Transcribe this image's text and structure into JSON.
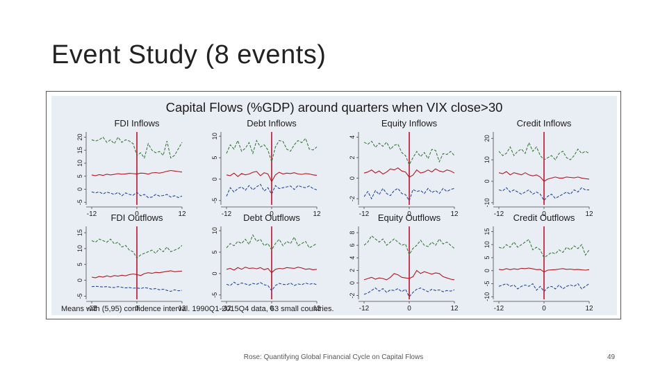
{
  "slide": {
    "title": "Event Study (8 events)",
    "footer": "Rose: Quantifying Global Financial Cycle on Capital Flows",
    "page_number": "49"
  },
  "colors": {
    "background_panel": "#e9eef4",
    "event_line": "#c0102a",
    "upper_band": "#3b7a3b",
    "mean_line": "#b3151e",
    "lower_band": "#24489a",
    "text": "#1a1a1a"
  },
  "chart_data": {
    "type": "line",
    "title": "Capital Flows (%GDP) around quarters when VIX close>30",
    "note": "Means with (5,95) confidence interval. 1990Q1-2015Q4 data, 63 small countries.",
    "x": [
      -12,
      -11,
      -10,
      -9,
      -8,
      -7,
      -6,
      -5,
      -4,
      -3,
      -2,
      -1,
      0,
      1,
      2,
      3,
      4,
      5,
      6,
      7,
      8,
      9,
      10,
      11,
      12
    ],
    "xticks": [
      "-12",
      "0",
      "12"
    ],
    "event_x": 0,
    "panels": [
      {
        "title": "FDI Inflows",
        "ylim": [
          -6,
          22
        ],
        "yticks": [
          "-5",
          "0",
          "5",
          "10",
          "15",
          "20"
        ],
        "ytick_values": [
          -5,
          0,
          5,
          10,
          15,
          20
        ],
        "upper": [
          19,
          18.5,
          19,
          20,
          18,
          19,
          17.5,
          20,
          18,
          19,
          18.5,
          17.5,
          13,
          14,
          12,
          17.5,
          15,
          14,
          14.5,
          13,
          18.5,
          12,
          13,
          15.5,
          18
        ],
        "mean": [
          5.5,
          5.2,
          5.6,
          5.3,
          5.8,
          5.5,
          5.7,
          6,
          5.8,
          5.9,
          6.1,
          6,
          5.9,
          6.2,
          6.1,
          5.8,
          6.3,
          6.4,
          6.2,
          6.5,
          6.9,
          7.2,
          7,
          6.8,
          6.6
        ],
        "lower": [
          -1,
          -1.4,
          -1,
          -1.8,
          -1.1,
          -1.5,
          -2,
          -1.2,
          -2.5,
          -1.4,
          -2,
          -2.3,
          -1.2,
          -2.5,
          -2,
          -3.2,
          -3,
          -2,
          -2.6,
          -2.4,
          -2,
          -3,
          -2.5,
          -3.2,
          -2.6
        ]
      },
      {
        "title": "Debt Inflows",
        "ylim": [
          -6,
          11
        ],
        "yticks": [
          "-5",
          "0",
          "5",
          "10"
        ],
        "ytick_values": [
          -5,
          0,
          5,
          10
        ],
        "upper": [
          6,
          8,
          7,
          9,
          6.5,
          7.2,
          8.5,
          6,
          9,
          7.5,
          8,
          6.8,
          4,
          7.5,
          9,
          8.8,
          7,
          6.5,
          8,
          9,
          8.5,
          9.5,
          7,
          6.8,
          7.5
        ],
        "mean": [
          1,
          0.8,
          1.4,
          0.6,
          1.3,
          1,
          1.2,
          1.6,
          1.8,
          0.8,
          1.5,
          1.2,
          -0.6,
          1,
          1.6,
          1.2,
          1.4,
          1.3,
          1.5,
          1.2,
          1.1,
          1.3,
          1.2,
          1,
          0.9
        ],
        "lower": [
          -4,
          -2,
          -3,
          -2.2,
          -1.8,
          -2.6,
          -1.5,
          -2.5,
          -1.8,
          -1.2,
          -2.8,
          -2,
          -3.5,
          -1.5,
          -2.2,
          -2,
          -1.8,
          -1.6,
          -2.4,
          -1.5,
          -1.8,
          -2,
          -1.6,
          -2.2,
          -2.5
        ]
      },
      {
        "title": "Equity Inflows",
        "ylim": [
          -2.6,
          4.5
        ],
        "yticks": [
          "-2",
          "0",
          "2",
          "4"
        ],
        "ytick_values": [
          -2,
          0,
          2,
          4
        ],
        "upper": [
          3.5,
          3.3,
          3.6,
          3,
          3.4,
          3.1,
          3.5,
          2.8,
          3.2,
          3.3,
          2.5,
          2.2,
          1.3,
          2,
          2.6,
          2.1,
          2.5,
          1.9,
          2.8,
          2.7,
          1.6,
          2.4,
          2.3,
          2.6,
          2.2
        ],
        "mean": [
          0.5,
          0.6,
          0.8,
          0.5,
          0.7,
          0.4,
          0.6,
          0.9,
          0.8,
          1,
          0.7,
          0.6,
          0.1,
          0.3,
          0.8,
          0.5,
          0.6,
          0.8,
          0.6,
          0.9,
          0.7,
          0.6,
          0.8,
          0.7,
          0.5
        ],
        "lower": [
          -1.8,
          -1.3,
          -2,
          -1.2,
          -1.6,
          -1,
          -1.5,
          -1.7,
          -1.2,
          -1,
          -1.5,
          -1.6,
          -2.2,
          -1.1,
          -1.3,
          -1.2,
          -1.5,
          -1,
          -1.4,
          -1.2,
          -1.5,
          -1,
          -1.3,
          -1.1,
          -1
        ]
      },
      {
        "title": "Credit Inflows",
        "ylim": [
          -11,
          23
        ],
        "yticks": [
          "-10",
          "0",
          "10",
          "20"
        ],
        "ytick_values": [
          -10,
          0,
          10,
          20
        ],
        "upper": [
          14,
          12,
          13,
          16,
          12,
          14,
          15,
          13,
          18,
          14,
          16,
          12,
          10,
          11,
          12,
          10,
          13,
          14,
          11,
          10,
          12,
          15,
          13,
          14,
          13
        ],
        "mean": [
          4,
          3.5,
          4.5,
          3,
          4,
          3.5,
          3,
          4,
          3,
          2.5,
          3,
          2,
          0,
          1,
          1.5,
          2,
          1.5,
          1.5,
          2,
          1.8,
          1.6,
          2,
          1.5,
          1.2,
          1
        ],
        "lower": [
          -4,
          -4.5,
          -3,
          -5,
          -4,
          -5,
          -6,
          -5,
          -4,
          -6,
          -5,
          -6,
          -9,
          -7,
          -6,
          -8,
          -7,
          -6,
          -5,
          -6,
          -4,
          -5,
          -3,
          -4,
          -4
        ]
      },
      {
        "title": "FDI Outflows",
        "ylim": [
          -6,
          17
        ],
        "yticks": [
          "-5",
          "0",
          "5",
          "10",
          "15"
        ],
        "ytick_values": [
          -5,
          0,
          5,
          10,
          15
        ],
        "upper": [
          12.5,
          12,
          13,
          12.5,
          12,
          13,
          11.5,
          12,
          10.5,
          11,
          9.5,
          9,
          7,
          8,
          8.5,
          9,
          9.5,
          8.5,
          10,
          9,
          10.5,
          9,
          9.5,
          10,
          11
        ],
        "mean": [
          1,
          0.8,
          1.2,
          1,
          1.4,
          1.1,
          1.5,
          1.3,
          1.6,
          1.4,
          1.8,
          2,
          1.8,
          1.5,
          2.1,
          2.4,
          2.2,
          2.5,
          2.4,
          2.6,
          2.8,
          3,
          2.7,
          2.8,
          2.9
        ],
        "lower": [
          -2,
          -1.9,
          -2,
          -2.1,
          -2,
          -2.2,
          -2.3,
          -2,
          -2.2,
          -2.4,
          -2.3,
          -2.5,
          -2.4,
          -2.6,
          -2.3,
          -2.5,
          -2.8,
          -2.6,
          -3,
          -2.8,
          -3.2,
          -3.5,
          -3,
          -3.3,
          -3.2
        ]
      },
      {
        "title": "Debt Outflows",
        "ylim": [
          -6,
          11
        ],
        "yticks": [
          "-5",
          "0",
          "5",
          "10"
        ],
        "ytick_values": [
          -5,
          0,
          5,
          10
        ],
        "upper": [
          6,
          7,
          6.5,
          7.5,
          7,
          8,
          6.8,
          9,
          7.5,
          8,
          6.5,
          7,
          5.5,
          7,
          8,
          6.5,
          7.5,
          7,
          8.5,
          6.5,
          7,
          7.5,
          6,
          6.5,
          7
        ],
        "mean": [
          1,
          1.2,
          0.8,
          1.4,
          1,
          1.5,
          1.2,
          1.3,
          1.1,
          1.4,
          0.9,
          1.2,
          0.2,
          1,
          1.2,
          1.1,
          1.4,
          1.3,
          1.2,
          1.5,
          1.3,
          1,
          1.1,
          0.9,
          1
        ],
        "lower": [
          -2.5,
          -2.8,
          -2,
          -2.6,
          -2.2,
          -2.4,
          -2.7,
          -2.3,
          -2.5,
          -2.1,
          -2.6,
          -2.8,
          -4,
          -2.8,
          -2.3,
          -2.5,
          -2.6,
          -2.2,
          -2.8,
          -2.4,
          -2.6,
          -2.2,
          -2.5,
          -2.3,
          -2.6
        ]
      },
      {
        "title": "Equity Outflows",
        "ylim": [
          -2.6,
          9
        ],
        "yticks": [
          "-2",
          "0",
          "2",
          "4",
          "6",
          "8"
        ],
        "ytick_values": [
          -2,
          0,
          2,
          4,
          6,
          8
        ],
        "upper": [
          6,
          6.5,
          7.5,
          7,
          6.5,
          7,
          6,
          6.5,
          7,
          6.5,
          6,
          6.2,
          4.5,
          5.5,
          6,
          6.8,
          6,
          5.8,
          6.5,
          6,
          7,
          6.2,
          6.5,
          6,
          5.5
        ],
        "mean": [
          0.5,
          0.7,
          0.9,
          0.6,
          0.8,
          0.7,
          0.5,
          0.9,
          1.5,
          1.3,
          0.9,
          0.8,
          0.7,
          1,
          2,
          1.5,
          1.8,
          1.6,
          1.4,
          1.6,
          1.5,
          1,
          0.8,
          0.6,
          0.5
        ],
        "lower": [
          -1.8,
          -1.6,
          -1.2,
          -0.8,
          -1.3,
          -0.9,
          -1.5,
          -1.1,
          -1.2,
          -0.9,
          -1.4,
          -1,
          -2.2,
          -1.5,
          -1,
          -0.8,
          -1.1,
          -1.4,
          -1,
          -1.2,
          -1.1,
          -1.4,
          -1.2,
          -1.3,
          -1.1
        ]
      },
      {
        "title": "Credit Outflows",
        "ylim": [
          -11,
          17
        ],
        "yticks": [
          "-10",
          "-5",
          "0",
          "5",
          "10",
          "15"
        ],
        "ytick_values": [
          -10,
          -5,
          0,
          5,
          10,
          15
        ],
        "upper": [
          9,
          8.5,
          10,
          9,
          11,
          9,
          10,
          11,
          12,
          8,
          9,
          8,
          5,
          6,
          7,
          6.5,
          8,
          7,
          9,
          8,
          9.5,
          8.5,
          10,
          6,
          8
        ],
        "mean": [
          0.5,
          0.3,
          0.8,
          0.4,
          0.7,
          0.5,
          0.9,
          0.8,
          1,
          0.7,
          0.4,
          0.5,
          -0.5,
          0.2,
          0.3,
          0.4,
          0.6,
          0.8,
          0.5,
          0.6,
          0.4,
          0.5,
          0.3,
          0.2,
          0.4
        ],
        "lower": [
          -6,
          -5.5,
          -5,
          -6,
          -5.5,
          -7,
          -6,
          -5.5,
          -6,
          -5,
          -7.5,
          -6,
          -8,
          -6.5,
          -6,
          -7,
          -5.5,
          -7,
          -6,
          -5.5,
          -6,
          -5,
          -7,
          -6,
          -5
        ]
      }
    ]
  }
}
